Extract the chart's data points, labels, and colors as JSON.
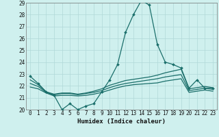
{
  "xlabel": "Humidex (Indice chaleur)",
  "xlim": [
    -0.5,
    23.5
  ],
  "ylim": [
    20,
    29
  ],
  "yticks": [
    20,
    21,
    22,
    23,
    24,
    25,
    26,
    27,
    28,
    29
  ],
  "xticks": [
    0,
    1,
    2,
    3,
    4,
    5,
    6,
    7,
    8,
    9,
    10,
    11,
    12,
    13,
    14,
    15,
    16,
    17,
    18,
    19,
    20,
    21,
    22,
    23
  ],
  "xtick_labels": [
    "0",
    "1",
    "2",
    "3",
    "4",
    "5",
    "6",
    "7",
    "8",
    "9",
    "10",
    "11",
    "12",
    "13",
    "14",
    "15",
    "16",
    "17",
    "18",
    "19",
    "20",
    "21",
    "22",
    "23"
  ],
  "bg_color": "#cff0ee",
  "grid_color": "#b0d8d8",
  "line_color": "#1a6e6a",
  "curves": [
    {
      "x": [
        0,
        1,
        2,
        3,
        4,
        5,
        6,
        7,
        8,
        9,
        10,
        11,
        12,
        13,
        14,
        15,
        16,
        17,
        18,
        19,
        20,
        21,
        22,
        23
      ],
      "y": [
        22.8,
        22.2,
        21.5,
        21.2,
        20.0,
        20.5,
        20.0,
        20.3,
        20.5,
        21.5,
        22.5,
        23.8,
        26.5,
        28.0,
        29.2,
        28.8,
        25.5,
        24.0,
        23.8,
        23.5,
        21.8,
        22.5,
        21.8,
        21.8
      ],
      "marker": "D",
      "markersize": 2.0,
      "linewidth": 0.9
    },
    {
      "x": [
        0,
        1,
        2,
        3,
        4,
        5,
        6,
        7,
        8,
        9,
        10,
        11,
        12,
        13,
        14,
        15,
        16,
        17,
        18,
        19,
        20,
        21,
        22,
        23
      ],
      "y": [
        22.5,
        22.1,
        21.5,
        21.3,
        21.4,
        21.4,
        21.3,
        21.4,
        21.55,
        21.75,
        22.05,
        22.25,
        22.45,
        22.55,
        22.65,
        22.75,
        22.9,
        23.1,
        23.25,
        23.4,
        21.75,
        21.85,
        21.95,
        21.85
      ],
      "marker": null,
      "markersize": 0,
      "linewidth": 0.9
    },
    {
      "x": [
        0,
        1,
        2,
        3,
        4,
        5,
        6,
        7,
        8,
        9,
        10,
        11,
        12,
        13,
        14,
        15,
        16,
        17,
        18,
        19,
        20,
        21,
        22,
        23
      ],
      "y": [
        22.2,
        21.95,
        21.45,
        21.25,
        21.35,
        21.35,
        21.25,
        21.35,
        21.45,
        21.6,
        21.85,
        22.05,
        22.2,
        22.3,
        22.4,
        22.5,
        22.6,
        22.75,
        22.85,
        22.95,
        21.6,
        21.7,
        21.8,
        21.7
      ],
      "marker": null,
      "markersize": 0,
      "linewidth": 0.9
    },
    {
      "x": [
        0,
        1,
        2,
        3,
        4,
        5,
        6,
        7,
        8,
        9,
        10,
        11,
        12,
        13,
        14,
        15,
        16,
        17,
        18,
        19,
        20,
        21,
        22,
        23
      ],
      "y": [
        21.9,
        21.75,
        21.4,
        21.15,
        21.2,
        21.2,
        21.15,
        21.2,
        21.3,
        21.45,
        21.65,
        21.85,
        22.0,
        22.1,
        22.15,
        22.2,
        22.25,
        22.4,
        22.5,
        22.6,
        21.45,
        21.55,
        21.65,
        21.55
      ],
      "marker": null,
      "markersize": 0,
      "linewidth": 0.9
    }
  ],
  "tick_fontsize": 5.5,
  "label_fontsize": 6.5
}
